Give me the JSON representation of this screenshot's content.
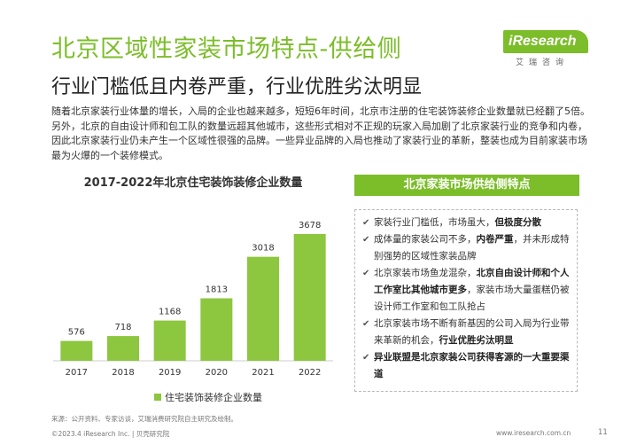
{
  "header": {
    "title": "北京区域性家装市场特点-供给侧",
    "subtitle": "行业门槛低且内卷严重，行业优胜劣汰明显"
  },
  "logo": {
    "brand": "iResearch",
    "chinese": "艾瑞咨询"
  },
  "intro": "随着北京家装行业体量的增长，入局的企业也越来越多，短短6年时间，北京市注册的住宅装饰装修企业数量就已经翻了5倍。另外，北京的自由设计师和包工队的数量远超其他城市，这些形式相对不正规的玩家入局加剧了北京家装行业的竞争和内卷，因此北京家装行业仍未产生一个区域性很强的品牌。一些异业品牌的入局也推动了家装行业的革新，整装也成为目前家装市场最为火爆的一个装修模式。",
  "chart_data": {
    "type": "bar",
    "title": "2017-2022年北京住宅装饰装修企业数量",
    "categories": [
      "2017",
      "2018",
      "2019",
      "2020",
      "2021",
      "2022"
    ],
    "series": [
      {
        "name": "住宅装饰装修企业数量",
        "values": [
          576,
          718,
          1168,
          1813,
          3018,
          3678
        ]
      }
    ],
    "data_labels": [
      "576",
      "718",
      "1168",
      "1813",
      "3018",
      "3678"
    ],
    "color": "#8dc63f",
    "grid": false,
    "legend": "bottom",
    "ylim": [
      0,
      3678
    ]
  },
  "panel": {
    "header": "北京家装市场供给侧特点",
    "items": [
      [
        {
          "t": "家装行业门槛低，市场虽大，",
          "b": false
        },
        {
          "t": "但极度分散",
          "b": true
        }
      ],
      [
        {
          "t": "成体量的家装公司不多，",
          "b": false
        },
        {
          "t": "内卷严重",
          "b": true
        },
        {
          "t": "，并未形成特别强势的区域性家装品牌",
          "b": false
        }
      ],
      [
        {
          "t": "北京家装市场鱼龙混杂，",
          "b": false
        },
        {
          "t": "北京自由设计师和个人工作室比其他城市更多",
          "b": true
        },
        {
          "t": "，家装市场大量蛋糕仍被设计师工作室和包工队抢占",
          "b": false
        }
      ],
      [
        {
          "t": "北京家装市场不断有新基因的公司入局为行业带来革新的机会，",
          "b": false
        },
        {
          "t": "行业优胜劣汰明显",
          "b": true
        }
      ],
      [
        {
          "t": "异业联盟是北京家装公司获得客源的一大重要渠道",
          "b": true
        }
      ]
    ]
  },
  "footer": {
    "source": "来源：公开资料、专家访谈，艾瑞消费研究院自主研究及绘制。",
    "copyright": "©2023.4 iResearch Inc. | 贝壳研究院",
    "site": "www.iresearch.com.cn",
    "page": "11"
  },
  "colors": {
    "accent": "#7cbd2a",
    "bar": "#8dc63f"
  }
}
